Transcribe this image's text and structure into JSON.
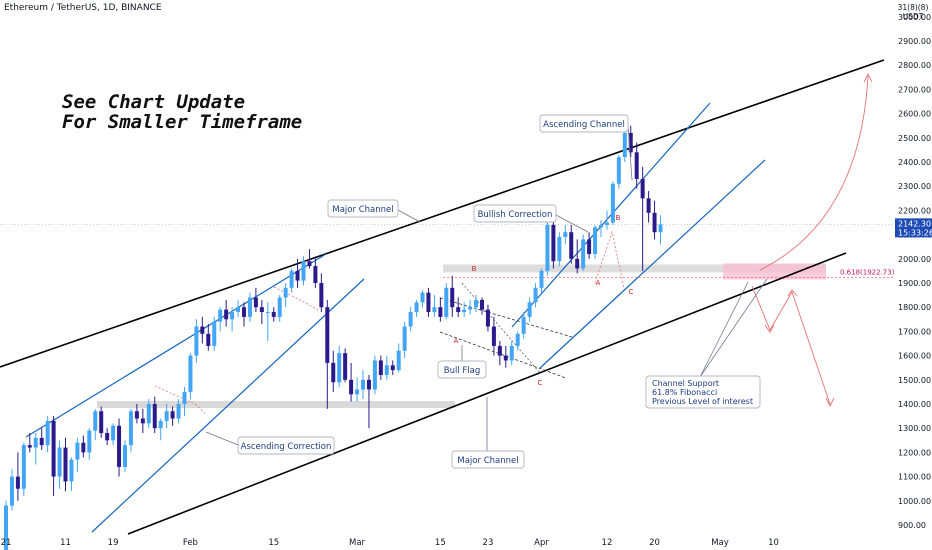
{
  "header": {
    "symbol": "Ethereum / TetherUS, 1D, BINANCE",
    "currency_top": "31(8)(8)",
    "currency_bottom": "USDT"
  },
  "headline": {
    "line1": "See Chart Update",
    "line2": "For Smaller Timeframe"
  },
  "price_tag": {
    "price": "2142.30",
    "countdown": "15:33:26",
    "color": "#1e4bb5"
  },
  "fib_label": "0.618(1922.73)",
  "annotations": [
    {
      "id": "major-channel-top",
      "text": "Major Channel"
    },
    {
      "id": "major-channel-bottom",
      "text": "Major Channel"
    },
    {
      "id": "ascending-channel",
      "text": "Ascending Channel"
    },
    {
      "id": "bullish-correction",
      "text": "Bullish Correction"
    },
    {
      "id": "bull-flag",
      "text": "Bull Flag"
    },
    {
      "id": "ascending-correction",
      "text": "Ascending Correction"
    },
    {
      "id": "channel-support",
      "lines": [
        "Channel Support",
        "61.8% Fibonacci",
        "Previous Level of interest"
      ]
    }
  ],
  "point_labels": {
    "flag": [
      "A",
      "B",
      "C"
    ],
    "correction": [
      "A",
      "B",
      "C"
    ]
  },
  "colors": {
    "up": "#42a5f5",
    "down": "#2a1a8c",
    "channel_blue": "#1565c0",
    "major_channel": "#000000",
    "projection": "#e57373",
    "zone": "#f8bbd0",
    "grey_zone": "#d9d9d9",
    "box_border": "#b0b7c3"
  },
  "chart_data": {
    "type": "candlestick",
    "title": "Ethereum / TetherUS, 1D, BINANCE",
    "y_ticks": [
      900,
      1000,
      1100,
      1200,
      1300,
      1400,
      1500,
      1600,
      1700,
      1800,
      1900,
      2000,
      2100,
      2200,
      2300,
      2400,
      2500,
      2600,
      2700,
      2800,
      2900,
      3000
    ],
    "y_tick_labels": [
      "900.00",
      "1000.00",
      "1100.00",
      "1200.00",
      "1300.00",
      "1400.00",
      "1500.00",
      "1600.00",
      "1700.00",
      "1800.00",
      "1900.00",
      "2000.00",
      "2100.00",
      "2200.00",
      "2300.00",
      "2400.00",
      "2500.00",
      "2600.00",
      "2700.00",
      "2800.00",
      "2900.00",
      "3000.00"
    ],
    "ylim": [
      860,
      3080
    ],
    "x_tick_labels": [
      {
        "day": 0,
        "label": "21"
      },
      {
        "day": 10,
        "label": "11"
      },
      {
        "day": 18,
        "label": "19"
      },
      {
        "day": 31,
        "label": "Feb"
      },
      {
        "day": 45,
        "label": "15"
      },
      {
        "day": 59,
        "label": "Mar"
      },
      {
        "day": 73,
        "label": "15"
      },
      {
        "day": 81,
        "label": "23"
      },
      {
        "day": 90,
        "label": "Apr"
      },
      {
        "day": 101,
        "label": "12"
      },
      {
        "day": 109,
        "label": "20"
      },
      {
        "day": 120,
        "label": "May"
      },
      {
        "day": 129,
        "label": "10"
      }
    ],
    "current_price": 2142.3,
    "fib_level": 1922.73,
    "ohlc": [
      [
        730,
        1000,
        720,
        980
      ],
      [
        980,
        1130,
        960,
        1100
      ],
      [
        1100,
        1200,
        1000,
        1050
      ],
      [
        1050,
        1240,
        1020,
        1230
      ],
      [
        1230,
        1280,
        1200,
        1220
      ],
      [
        1220,
        1280,
        1150,
        1260
      ],
      [
        1260,
        1300,
        1210,
        1230
      ],
      [
        1230,
        1350,
        1200,
        1330
      ],
      [
        1330,
        1350,
        1020,
        1100
      ],
      [
        1100,
        1250,
        1050,
        1220
      ],
      [
        1220,
        1260,
        1040,
        1080
      ],
      [
        1080,
        1180,
        1040,
        1170
      ],
      [
        1170,
        1260,
        1120,
        1240
      ],
      [
        1240,
        1270,
        1180,
        1200
      ],
      [
        1200,
        1300,
        1170,
        1290
      ],
      [
        1290,
        1380,
        1250,
        1370
      ],
      [
        1370,
        1390,
        1260,
        1280
      ],
      [
        1280,
        1300,
        1230,
        1250
      ],
      [
        1250,
        1320,
        1230,
        1310
      ],
      [
        1310,
        1340,
        1100,
        1140
      ],
      [
        1140,
        1250,
        1120,
        1230
      ],
      [
        1230,
        1380,
        1200,
        1370
      ],
      [
        1370,
        1400,
        1320,
        1340
      ],
      [
        1340,
        1380,
        1280,
        1320
      ],
      [
        1320,
        1420,
        1300,
        1400
      ],
      [
        1400,
        1430,
        1280,
        1300
      ],
      [
        1300,
        1340,
        1250,
        1330
      ],
      [
        1330,
        1400,
        1300,
        1370
      ],
      [
        1370,
        1390,
        1310,
        1340
      ],
      [
        1340,
        1420,
        1320,
        1400
      ],
      [
        1400,
        1470,
        1350,
        1450
      ],
      [
        1450,
        1610,
        1420,
        1600
      ],
      [
        1600,
        1750,
        1570,
        1720
      ],
      [
        1720,
        1760,
        1650,
        1690
      ],
      [
        1690,
        1730,
        1620,
        1640
      ],
      [
        1640,
        1760,
        1620,
        1740
      ],
      [
        1740,
        1800,
        1700,
        1790
      ],
      [
        1790,
        1830,
        1720,
        1750
      ],
      [
        1750,
        1800,
        1700,
        1780
      ],
      [
        1780,
        1830,
        1760,
        1800
      ],
      [
        1800,
        1820,
        1720,
        1760
      ],
      [
        1760,
        1860,
        1740,
        1840
      ],
      [
        1840,
        1880,
        1780,
        1800
      ],
      [
        1800,
        1830,
        1730,
        1780
      ],
      [
        1780,
        1820,
        1660,
        1780
      ],
      [
        1780,
        1800,
        1740,
        1760
      ],
      [
        1760,
        1850,
        1740,
        1840
      ],
      [
        1840,
        1900,
        1800,
        1880
      ],
      [
        1880,
        1960,
        1860,
        1950
      ],
      [
        1950,
        2000,
        1880,
        1910
      ],
      [
        1910,
        2010,
        1890,
        1990
      ],
      [
        1990,
        2040,
        1960,
        1970
      ],
      [
        1970,
        2010,
        1880,
        1900
      ],
      [
        1900,
        1940,
        1780,
        1800
      ],
      [
        1800,
        1830,
        1380,
        1570
      ],
      [
        1570,
        1620,
        1450,
        1490
      ],
      [
        1490,
        1640,
        1470,
        1610
      ],
      [
        1610,
        1630,
        1490,
        1500
      ],
      [
        1500,
        1570,
        1410,
        1440
      ],
      [
        1440,
        1510,
        1410,
        1460
      ],
      [
        1460,
        1540,
        1420,
        1500
      ],
      [
        1500,
        1520,
        1300,
        1460
      ],
      [
        1460,
        1600,
        1440,
        1580
      ],
      [
        1580,
        1600,
        1500,
        1520
      ],
      [
        1520,
        1600,
        1500,
        1560
      ],
      [
        1560,
        1580,
        1520,
        1540
      ],
      [
        1540,
        1650,
        1530,
        1620
      ],
      [
        1620,
        1740,
        1590,
        1720
      ],
      [
        1720,
        1800,
        1700,
        1780
      ],
      [
        1780,
        1830,
        1760,
        1820
      ],
      [
        1820,
        1870,
        1800,
        1860
      ],
      [
        1860,
        1880,
        1760,
        1780
      ],
      [
        1780,
        1850,
        1760,
        1800
      ],
      [
        1800,
        1840,
        1740,
        1760
      ],
      [
        1760,
        1900,
        1750,
        1880
      ],
      [
        1880,
        1930,
        1760,
        1800
      ],
      [
        1800,
        1840,
        1760,
        1780
      ],
      [
        1780,
        1820,
        1760,
        1790
      ],
      [
        1790,
        1830,
        1770,
        1800
      ],
      [
        1800,
        1850,
        1780,
        1830
      ],
      [
        1830,
        1840,
        1770,
        1790
      ],
      [
        1790,
        1810,
        1700,
        1720
      ],
      [
        1720,
        1760,
        1600,
        1640
      ],
      [
        1640,
        1660,
        1560,
        1600
      ],
      [
        1600,
        1640,
        1550,
        1580
      ],
      [
        1580,
        1660,
        1560,
        1640
      ],
      [
        1640,
        1700,
        1620,
        1690
      ],
      [
        1690,
        1780,
        1670,
        1760
      ],
      [
        1760,
        1840,
        1740,
        1820
      ],
      [
        1820,
        1900,
        1800,
        1880
      ],
      [
        1880,
        1960,
        1860,
        1950
      ],
      [
        1950,
        2150,
        1930,
        2140
      ],
      [
        2140,
        2160,
        1960,
        1990
      ],
      [
        1990,
        2110,
        1970,
        2090
      ],
      [
        2090,
        2140,
        2060,
        2110
      ],
      [
        2110,
        2140,
        1980,
        2000
      ],
      [
        2000,
        2080,
        1940,
        1960
      ],
      [
        1960,
        2100,
        1950,
        2080
      ],
      [
        2080,
        2110,
        2000,
        2020
      ],
      [
        2020,
        2140,
        2000,
        2130
      ],
      [
        2130,
        2160,
        2090,
        2140
      ],
      [
        2140,
        2200,
        2120,
        2150
      ],
      [
        2150,
        2320,
        2140,
        2310
      ],
      [
        2310,
        2430,
        2290,
        2420
      ],
      [
        2420,
        2540,
        2400,
        2520
      ],
      [
        2520,
        2550,
        2420,
        2440
      ],
      [
        2440,
        2480,
        2290,
        2330
      ],
      [
        2330,
        2380,
        1950,
        2250
      ],
      [
        2250,
        2280,
        2150,
        2190
      ],
      [
        2190,
        2240,
        2080,
        2110
      ],
      [
        2110,
        2180,
        2060,
        2142
      ]
    ]
  }
}
